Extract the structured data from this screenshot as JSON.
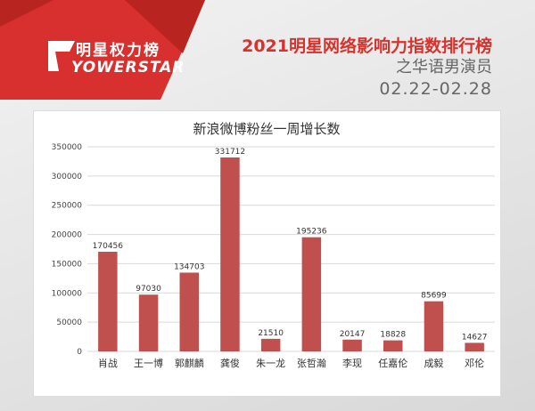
{
  "header": {
    "logo_top": "明星权力榜",
    "logo_bottom": "YOWERSTAR",
    "title": "2021明星网络影响力指数排行榜",
    "subtitle": "之华语男演员",
    "date_range": "02.22-02.28"
  },
  "colors": {
    "bar": "#c0504d",
    "accent": "#d6322e",
    "banner": "#d8302e"
  },
  "chart_data": {
    "type": "bar",
    "title": "新浪微博粉丝一周增长数",
    "xlabel": "",
    "ylabel": "",
    "categories": [
      "肖战",
      "王一博",
      "郭麒麟",
      "龚俊",
      "朱一龙",
      "张哲瀚",
      "李现",
      "任嘉伦",
      "成毅",
      "邓伦"
    ],
    "values": [
      170456,
      97030,
      134703,
      331712,
      21510,
      195236,
      20147,
      18828,
      85699,
      14627
    ],
    "ylim": [
      0,
      350000
    ],
    "yticks": [
      0,
      50000,
      100000,
      150000,
      200000,
      250000,
      300000,
      350000
    ],
    "grid": true,
    "legend": "none"
  }
}
